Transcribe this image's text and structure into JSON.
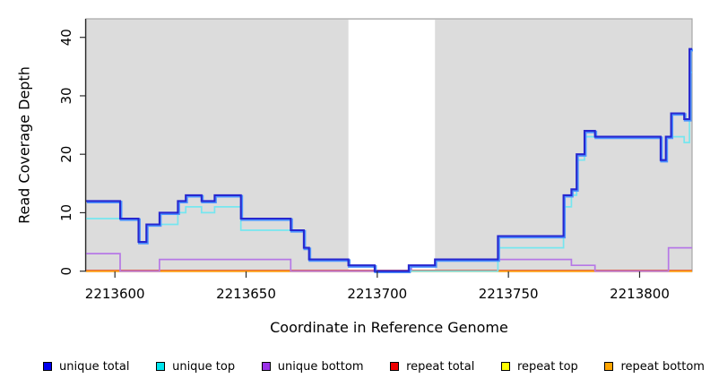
{
  "chart_data": {
    "type": "line",
    "subtype": "step-coverage-plot",
    "title": "",
    "xlabel": "Coordinate in Reference Genome",
    "ylabel": "Read Coverage Depth",
    "xlim": [
      2213589,
      2213820
    ],
    "ylim": [
      0,
      43
    ],
    "x_ticks": [
      2213600,
      2213650,
      2213700,
      2213750,
      2213800
    ],
    "y_ticks": [
      0,
      10,
      20,
      30,
      40
    ],
    "grid": false,
    "legend_position": "bottom",
    "panel_background": "#dcdcdc",
    "panel_border_color": "#a6a6a6",
    "axis_color": "#2b2b2b",
    "gap_region": {
      "start": 2213689,
      "end": 2213722,
      "color": "#ffffff"
    },
    "draw_order": [
      "repeat top",
      "repeat total",
      "repeat bottom",
      "unique bottom",
      "unique top",
      "unique total"
    ],
    "series": [
      {
        "name": "unique total",
        "color": "#2727cf",
        "swatch": "#0000ee",
        "shadow_color": "#4d94ff",
        "lw": 2.1,
        "steps": [
          [
            2213589,
            12
          ],
          [
            2213602,
            9
          ],
          [
            2213609,
            5
          ],
          [
            2213612,
            8
          ],
          [
            2213617,
            10
          ],
          [
            2213624,
            12
          ],
          [
            2213627,
            13
          ],
          [
            2213633,
            12
          ],
          [
            2213638,
            13
          ],
          [
            2213648,
            9
          ],
          [
            2213667,
            7
          ],
          [
            2213672,
            4
          ],
          [
            2213674,
            2
          ],
          [
            2213689,
            1
          ],
          [
            2213699,
            0
          ],
          [
            2213712,
            1
          ],
          [
            2213722,
            2
          ],
          [
            2213746,
            6
          ],
          [
            2213771,
            13
          ],
          [
            2213774,
            14
          ],
          [
            2213776,
            20
          ],
          [
            2213779,
            24
          ],
          [
            2213783,
            23
          ],
          [
            2213808,
            19
          ],
          [
            2213810,
            23
          ],
          [
            2213812,
            27
          ],
          [
            2213817,
            26
          ],
          [
            2213819,
            38
          ]
        ]
      },
      {
        "name": "unique top",
        "color": "#76e6ef",
        "swatch": "#00e6ee",
        "lw": 1.7,
        "steps": [
          [
            2213589,
            9
          ],
          [
            2213609,
            5
          ],
          [
            2213612,
            8
          ],
          [
            2213624,
            10
          ],
          [
            2213627,
            11
          ],
          [
            2213633,
            10
          ],
          [
            2213638,
            11
          ],
          [
            2213648,
            7
          ],
          [
            2213672,
            4
          ],
          [
            2213674,
            2
          ],
          [
            2213689,
            1
          ],
          [
            2213699,
            0
          ],
          [
            2213746,
            4
          ],
          [
            2213771,
            11
          ],
          [
            2213774,
            13
          ],
          [
            2213776,
            19
          ],
          [
            2213779,
            23
          ],
          [
            2213808,
            19
          ],
          [
            2213810,
            23
          ],
          [
            2213817,
            22
          ],
          [
            2213819,
            34
          ]
        ]
      },
      {
        "name": "unique bottom",
        "color": "#b678e6",
        "swatch": "#9a32e8",
        "lw": 1.7,
        "steps": [
          [
            2213589,
            3
          ],
          [
            2213602,
            0
          ],
          [
            2213617,
            2
          ],
          [
            2213667,
            0
          ],
          [
            2213713,
            1
          ],
          [
            2213722,
            2
          ],
          [
            2213774,
            1
          ],
          [
            2213783,
            0
          ],
          [
            2213811,
            4
          ]
        ]
      },
      {
        "name": "repeat total",
        "color": "#cf4a6a",
        "swatch": "#ee0000",
        "lw": 1.3,
        "dy": -1,
        "steps": [
          [
            2213589,
            0
          ]
        ]
      },
      {
        "name": "repeat top",
        "color": "#ffff00",
        "swatch": "#ffff00",
        "lw": 1.3,
        "steps": [
          [
            2213589,
            0
          ]
        ]
      },
      {
        "name": "repeat bottom",
        "color": "#ff9e15",
        "swatch": "#ffa500",
        "lw": 2.2,
        "steps": [
          [
            2213589,
            0
          ]
        ]
      }
    ]
  }
}
